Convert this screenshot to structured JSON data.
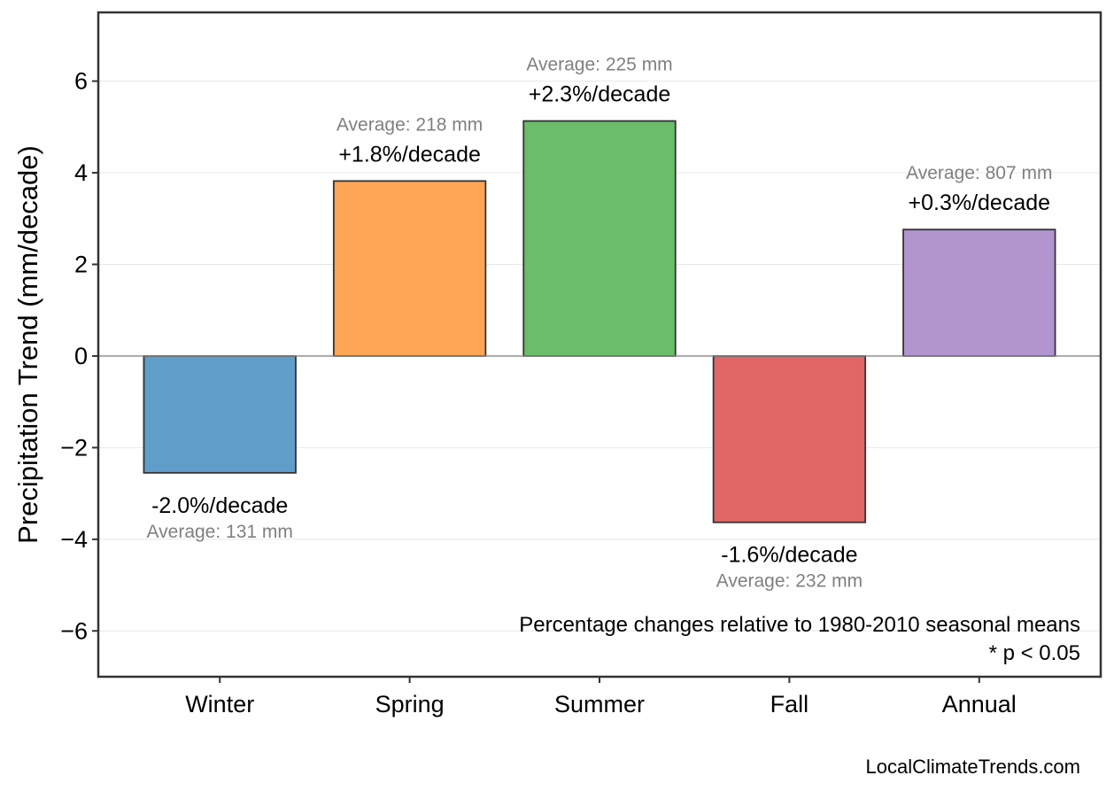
{
  "chart_data": {
    "type": "bar",
    "title": "",
    "xlabel": "",
    "ylabel": "Precipitation Trend (mm/decade)",
    "categories": [
      "Winter",
      "Spring",
      "Summer",
      "Fall",
      "Annual"
    ],
    "values": [
      -2.55,
      3.82,
      5.13,
      -3.63,
      2.76
    ],
    "colors": [
      "#5f9ec9",
      "#ffa556",
      "#6abd6a",
      "#e06668",
      "#b294cf"
    ],
    "percent_labels": [
      "-2.0%/decade",
      "+1.8%/decade",
      "+2.3%/decade",
      "-1.6%/decade",
      "+0.3%/decade"
    ],
    "average_labels": [
      "Average: 131 mm",
      "Average: 218 mm",
      "Average: 225 mm",
      "Average: 232 mm",
      "Average: 807 mm"
    ],
    "ylim": [
      -7,
      7.5
    ],
    "yticks": [
      -6,
      -4,
      -2,
      0,
      2,
      4,
      6
    ],
    "ytick_labels": [
      "−6",
      "−4",
      "−2",
      "0",
      "2",
      "4",
      "6"
    ],
    "grid": true,
    "annotation_lines": [
      "Percentage changes relative to 1980-2010 seasonal means",
      "* p < 0.05"
    ],
    "credit": "LocalClimateTrends.com"
  }
}
